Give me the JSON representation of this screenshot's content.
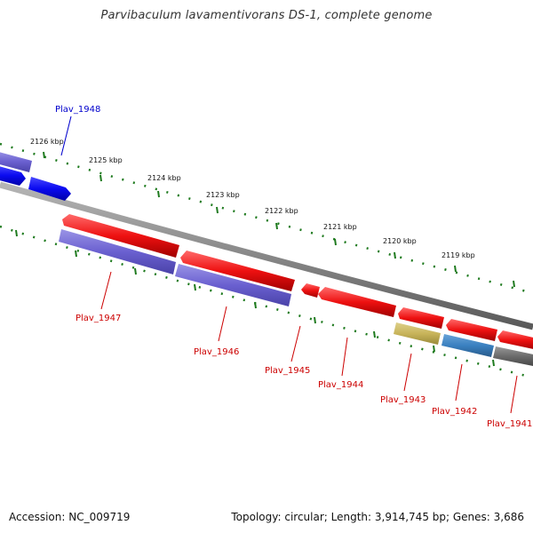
{
  "title": "Parvibaculum lavamentivorans DS-1, complete genome",
  "footer": {
    "accession": "Accession: NC_009719",
    "summary": "Topology: circular; Length: 3,914,745 bp; Genes: 3,686"
  },
  "colors": {
    "backbone": "#8a8a8a",
    "tick": "#1e7a1e",
    "label_red": "#cc0000",
    "label_blue": "#0000cc",
    "gene_red": "#ee1111",
    "gene_blue": "#0a0af0",
    "gene_purple": "#6a60d0",
    "gene_olive": "#c8b45a",
    "gene_steelblue": "#3a80c0",
    "gene_gray": "#6a6a6a"
  },
  "kbp_labels": [
    "2126 kbp",
    "2125 kbp",
    "2124 kbp",
    "2123 kbp",
    "2122 kbp",
    "2121 kbp",
    "2120 kbp",
    "2119 kbp"
  ],
  "gene_labels": {
    "g1948": "Plav_1948",
    "g1947": "Plav_1947",
    "g1946": "Plav_1946",
    "g1945": "Plav_1945",
    "g1944": "Plav_1944",
    "g1943": "Plav_1943",
    "g1942": "Plav_1942",
    "g1941": "Plav_1941"
  }
}
